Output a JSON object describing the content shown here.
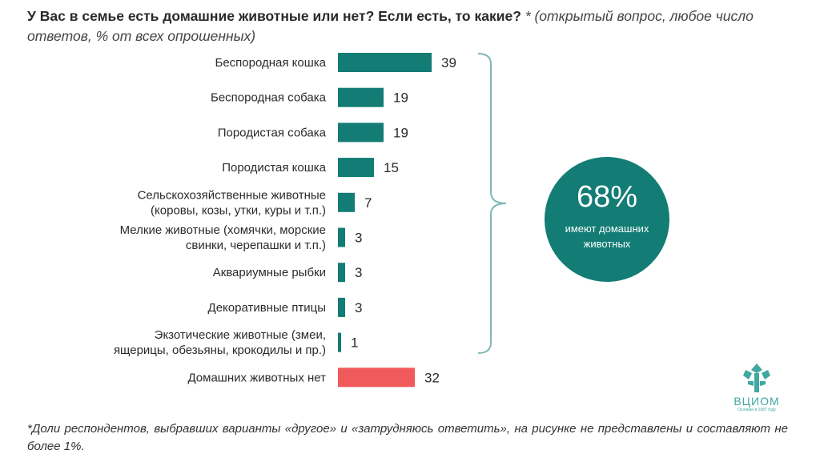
{
  "title": {
    "question": "У Вас в семье есть домашние животные или нет? Если есть, то какие?",
    "note": "* (открытый вопрос, любое число ответов, % от всех опрошенных)"
  },
  "chart_data": {
    "type": "bar",
    "orientation": "horizontal",
    "categories": [
      [
        "Беспородная кошка"
      ],
      [
        "Беспородная собака"
      ],
      [
        "Породистая собака"
      ],
      [
        "Породистая кошка"
      ],
      [
        "Сельскохозяйственные животные",
        "(коровы, козы, утки, куры и т.п.)"
      ],
      [
        "Мелкие животные (хомячки, морские",
        "свинки, черепашки и т.п.)"
      ],
      [
        "Аквариумные рыбки"
      ],
      [
        "Декоративные птицы"
      ],
      [
        "Экзотические животные (змеи,",
        "ящерицы, обезьяны, крокодилы и пр.)"
      ],
      [
        "Домашних животных нет"
      ]
    ],
    "values": [
      39,
      19,
      19,
      15,
      7,
      3,
      3,
      3,
      1,
      32
    ],
    "colors": [
      "#127c75",
      "#127c75",
      "#127c75",
      "#127c75",
      "#127c75",
      "#127c75",
      "#127c75",
      "#127c75",
      "#127c75",
      "#f05a5a"
    ],
    "xlim": [
      0,
      40
    ],
    "grid": false,
    "legend": "none"
  },
  "badge": {
    "value": "68%",
    "caption": "имеют домашних животных",
    "color": "#127c75",
    "bracket_color": "#7fb8b5"
  },
  "logo": {
    "name": "ВЦИОМ",
    "since": "Основан в 1987 году",
    "color": "#3fa8a0"
  },
  "footnote": "*Доли респондентов, выбравших варианты «другое» и «затрудняюсь ответить», на рисунке не представлены и составляют не более 1%."
}
